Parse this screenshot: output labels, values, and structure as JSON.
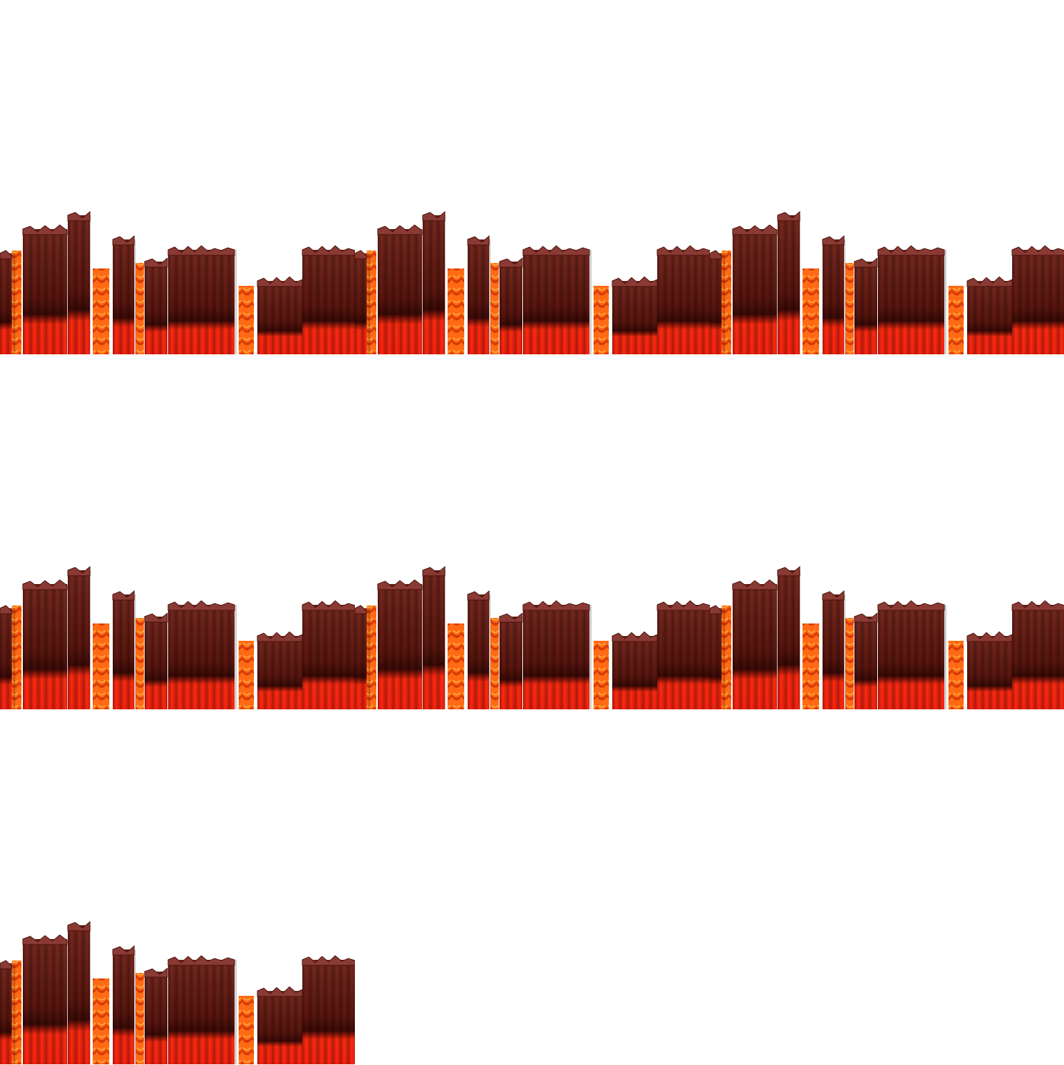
{
  "sheet": {
    "background": "#ffffff",
    "tile_count": 7,
    "columns": 3
  },
  "tiles": [
    {
      "name": "lava-pillar-tile-1"
    },
    {
      "name": "lava-pillar-tile-2"
    },
    {
      "name": "lava-pillar-tile-3"
    },
    {
      "name": "lava-pillar-tile-4"
    },
    {
      "name": "lava-pillar-tile-5"
    },
    {
      "name": "lava-pillar-tile-6"
    },
    {
      "name": "lava-pillar-tile-7"
    }
  ],
  "palette": {
    "rock_dark": "#3a0c08",
    "rock_mid": "#6e1e14",
    "rock_light": "#8a3a32",
    "lava_red": "#ff2a10",
    "lava_deep": "#c81408",
    "lavafall_orange": "#ff7a1a",
    "lavafall_dark": "#e04a08"
  }
}
